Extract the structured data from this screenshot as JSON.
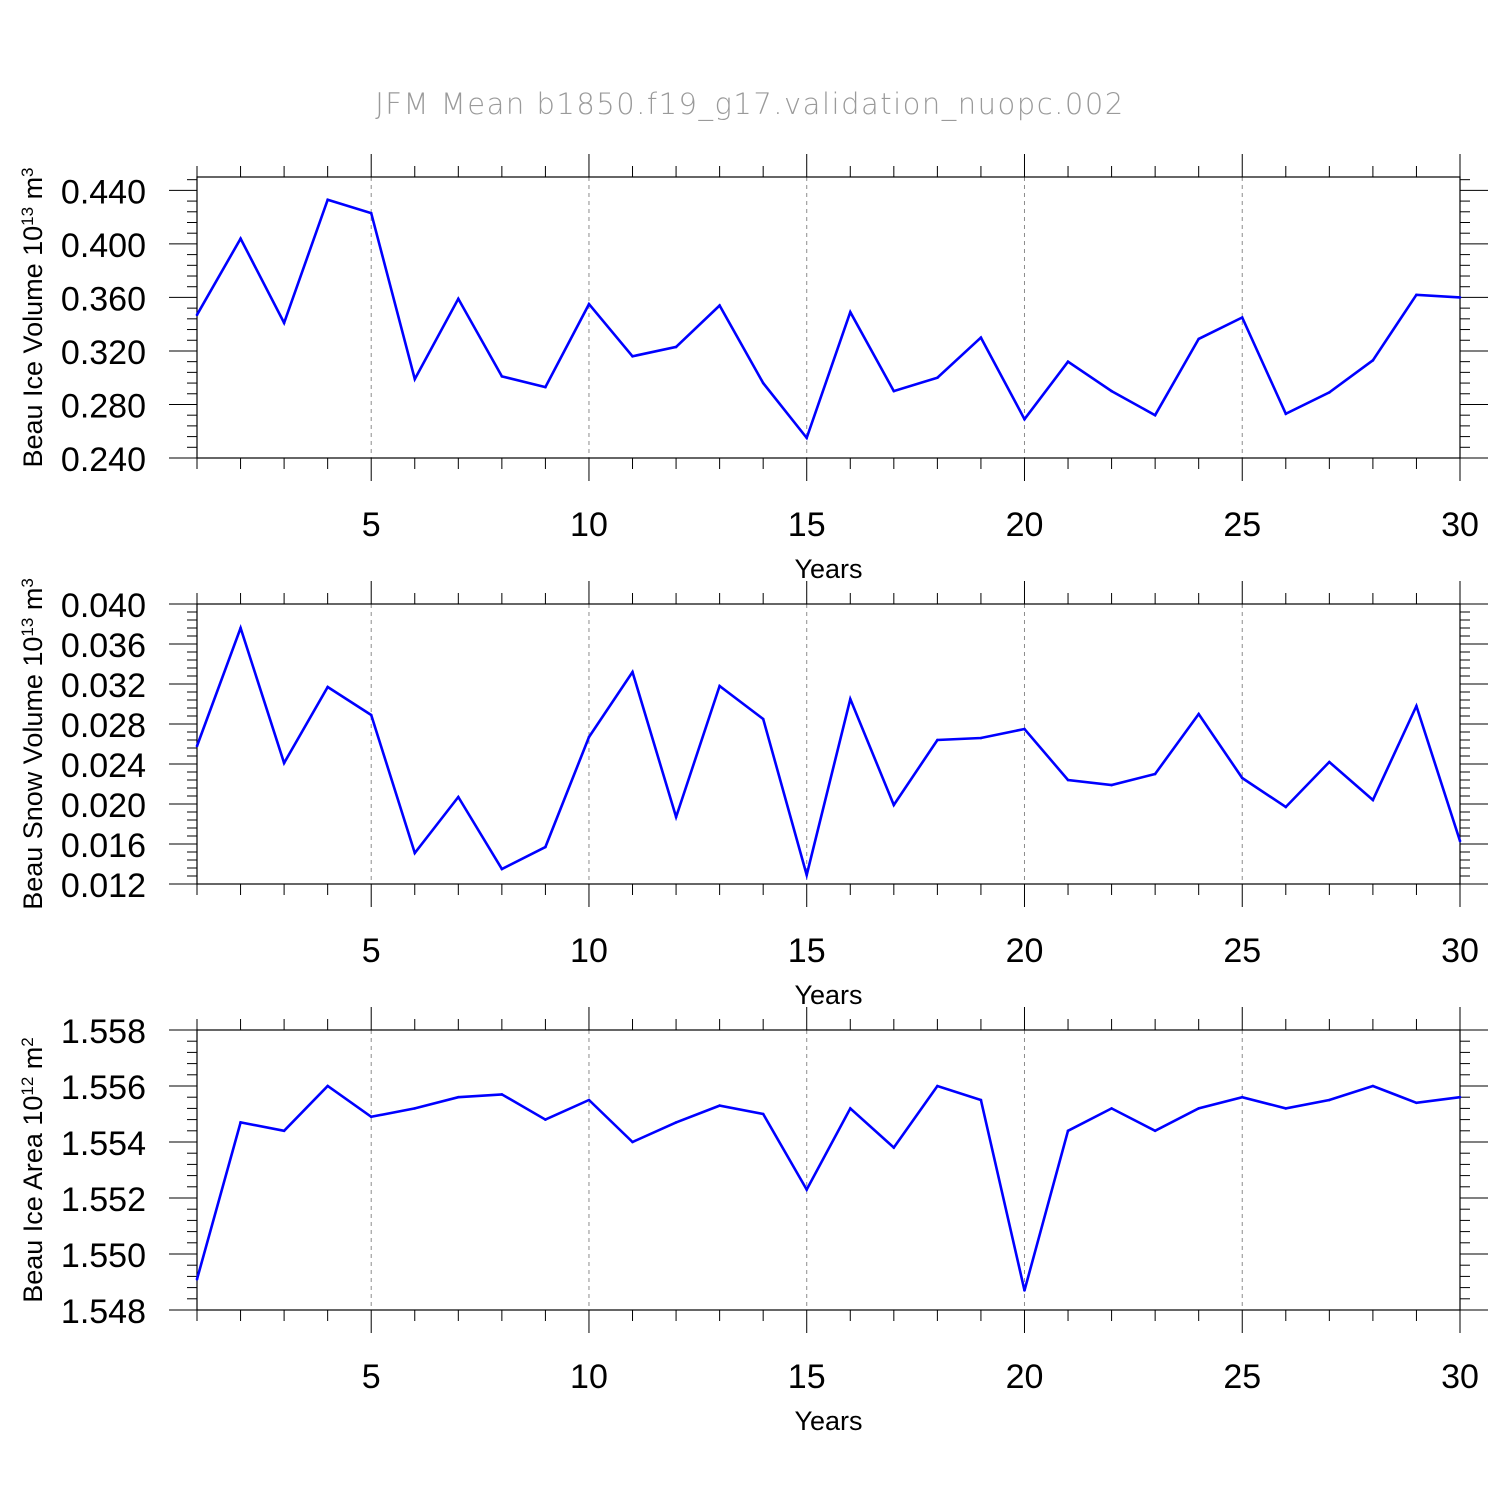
{
  "title": "JFM Mean b1850.f19_g17.validation_nuopc.002",
  "colors": {
    "line": "#0000ff",
    "axis": "#000000",
    "grid": "#8c8c8c",
    "title": "#9a9a9a"
  },
  "chart_data": [
    {
      "type": "line",
      "xlabel": "Years",
      "ylabel": "Beau Ice Volume 10",
      "ylabel_exp": "13",
      "ylabel_unit": " m",
      "ylabel_unit_exp": "3",
      "xlim": [
        1,
        30
      ],
      "ylim": [
        0.24,
        0.45
      ],
      "yticks": [
        "0.240",
        "0.280",
        "0.320",
        "0.360",
        "0.400",
        "0.440"
      ],
      "yticks_values": [
        0.24,
        0.28,
        0.32,
        0.36,
        0.4,
        0.44
      ],
      "xticks": [
        "5",
        "10",
        "15",
        "20",
        "25",
        "30"
      ],
      "xticks_values": [
        5,
        10,
        15,
        20,
        25,
        30
      ],
      "grid": "vertical dashed at major x ticks",
      "x": [
        1,
        2,
        3,
        4,
        5,
        6,
        7,
        8,
        9,
        10,
        11,
        12,
        13,
        14,
        15,
        16,
        17,
        18,
        19,
        20,
        21,
        22,
        23,
        24,
        25,
        26,
        27,
        28,
        29,
        30
      ],
      "values": [
        0.347,
        0.404,
        0.341,
        0.433,
        0.423,
        0.299,
        0.359,
        0.301,
        0.293,
        0.355,
        0.316,
        0.323,
        0.354,
        0.296,
        0.255,
        0.349,
        0.29,
        0.3,
        0.33,
        0.269,
        0.312,
        0.29,
        0.272,
        0.329,
        0.345,
        0.273,
        0.289,
        0.313,
        0.362,
        0.36
      ]
    },
    {
      "type": "line",
      "xlabel": "Years",
      "ylabel": "Beau Snow Volume 10",
      "ylabel_exp": "13",
      "ylabel_unit": " m",
      "ylabel_unit_exp": "3",
      "xlim": [
        1,
        30
      ],
      "ylim": [
        0.012,
        0.04
      ],
      "yticks": [
        "0.012",
        "0.016",
        "0.020",
        "0.024",
        "0.028",
        "0.032",
        "0.036",
        "0.040"
      ],
      "yticks_values": [
        0.012,
        0.016,
        0.02,
        0.024,
        0.028,
        0.032,
        0.036,
        0.04
      ],
      "xticks": [
        "5",
        "10",
        "15",
        "20",
        "25",
        "30"
      ],
      "xticks_values": [
        5,
        10,
        15,
        20,
        25,
        30
      ],
      "grid": "vertical dashed at major x ticks",
      "x": [
        1,
        2,
        3,
        4,
        5,
        6,
        7,
        8,
        9,
        10,
        11,
        12,
        13,
        14,
        15,
        16,
        17,
        18,
        19,
        20,
        21,
        22,
        23,
        24,
        25,
        26,
        27,
        28,
        29,
        30
      ],
      "values": [
        0.0258,
        0.0376,
        0.0241,
        0.0317,
        0.0289,
        0.0151,
        0.0207,
        0.0135,
        0.0157,
        0.0267,
        0.0332,
        0.0187,
        0.0318,
        0.0285,
        0.0129,
        0.0305,
        0.0199,
        0.0264,
        0.0266,
        0.0275,
        0.0224,
        0.0219,
        0.023,
        0.029,
        0.0226,
        0.0197,
        0.0242,
        0.0204,
        0.0298,
        0.0163
      ]
    },
    {
      "type": "line",
      "xlabel": "Years",
      "ylabel": "Beau Ice Area 10",
      "ylabel_exp": "12",
      "ylabel_unit": " m",
      "ylabel_unit_exp": "2",
      "xlim": [
        1,
        30
      ],
      "ylim": [
        1.548,
        1.558
      ],
      "yticks": [
        "1.548",
        "1.550",
        "1.552",
        "1.554",
        "1.556",
        "1.558"
      ],
      "yticks_values": [
        1.548,
        1.55,
        1.552,
        1.554,
        1.556,
        1.558
      ],
      "xticks": [
        "5",
        "10",
        "15",
        "20",
        "25",
        "30"
      ],
      "xticks_values": [
        5,
        10,
        15,
        20,
        25,
        30
      ],
      "grid": "vertical dashed at major x ticks",
      "x": [
        1,
        2,
        3,
        4,
        5,
        6,
        7,
        8,
        9,
        10,
        11,
        12,
        13,
        14,
        15,
        16,
        17,
        18,
        19,
        20,
        21,
        22,
        23,
        24,
        25,
        26,
        27,
        28,
        29,
        30
      ],
      "values": [
        1.5491,
        1.5547,
        1.5544,
        1.556,
        1.5549,
        1.5552,
        1.5556,
        1.5557,
        1.5548,
        1.5555,
        1.554,
        1.5547,
        1.5553,
        1.555,
        1.5523,
        1.5552,
        1.5538,
        1.556,
        1.5555,
        1.5487,
        1.5544,
        1.5552,
        1.5544,
        1.5552,
        1.5556,
        1.5552,
        1.5555,
        1.556,
        1.5554,
        1.5556
      ]
    }
  ]
}
